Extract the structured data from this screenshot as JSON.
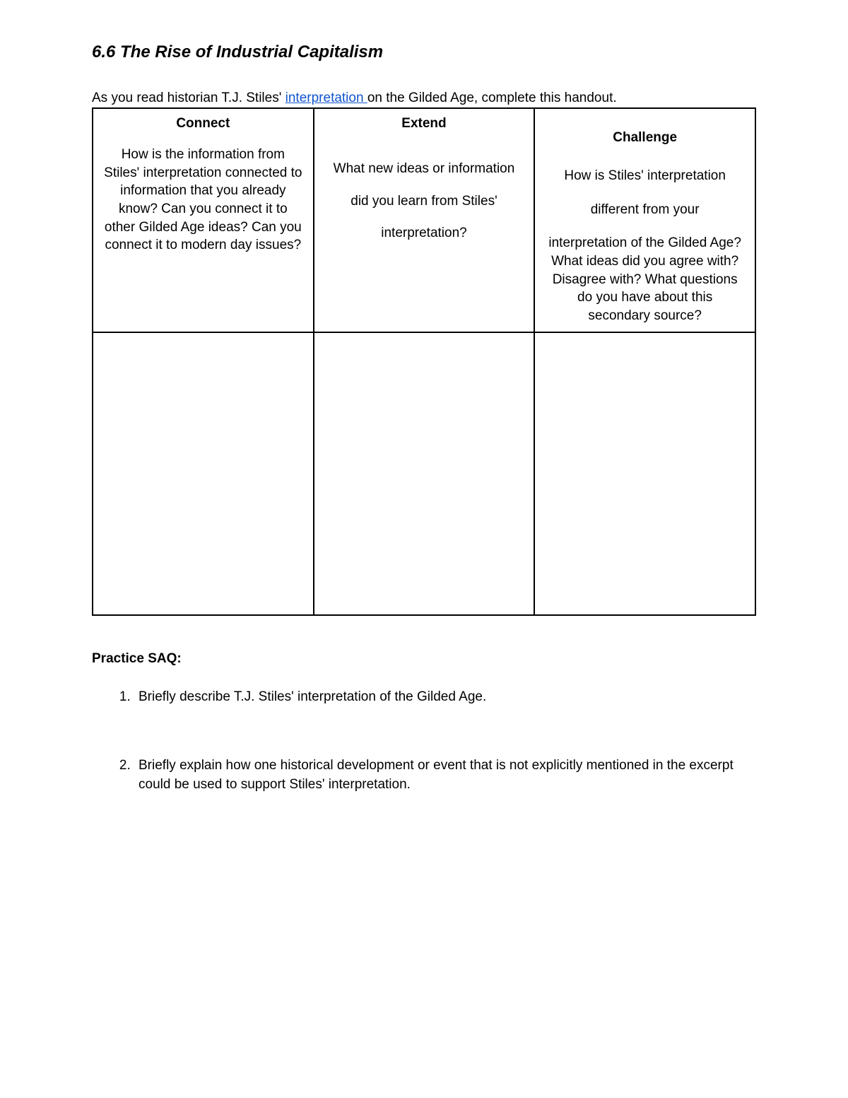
{
  "title": "6.6 The Rise of Industrial Capitalism",
  "intro_before": "As you read historian T.J. Stiles' ",
  "intro_link": "interpretation ",
  "intro_after": "on the Gilded Age, complete this handout.",
  "columns": {
    "connect": {
      "header": "Connect",
      "prompt": "How is the information from Stiles' interpretation connected to information that you already know? Can you connect it to other Gilded Age ideas? Can you connect it to modern day issues?"
    },
    "extend": {
      "header": "Extend",
      "prompt": "What new ideas or information did you learn from Stiles' interpretation?"
    },
    "challenge": {
      "header": "Challenge",
      "prompt_part1": "How is Stiles' interpretation",
      "prompt_part2": "different from your",
      "prompt_part3": "interpretation of the Gilded Age? What ideas did you agree with? Disagree with? What questions do you have about this secondary source?"
    }
  },
  "saq_heading": "Practice SAQ:",
  "saq_items": [
    "Briefly describe T.J. Stiles' interpretation of the Gilded Age.",
    "Briefly explain how one historical development or event that is not explicitly mentioned in the excerpt could be used to support Stiles' interpretation."
  ],
  "colors": {
    "text": "#000000",
    "link": "#1155cc",
    "border": "#000000",
    "background": "#ffffff"
  }
}
